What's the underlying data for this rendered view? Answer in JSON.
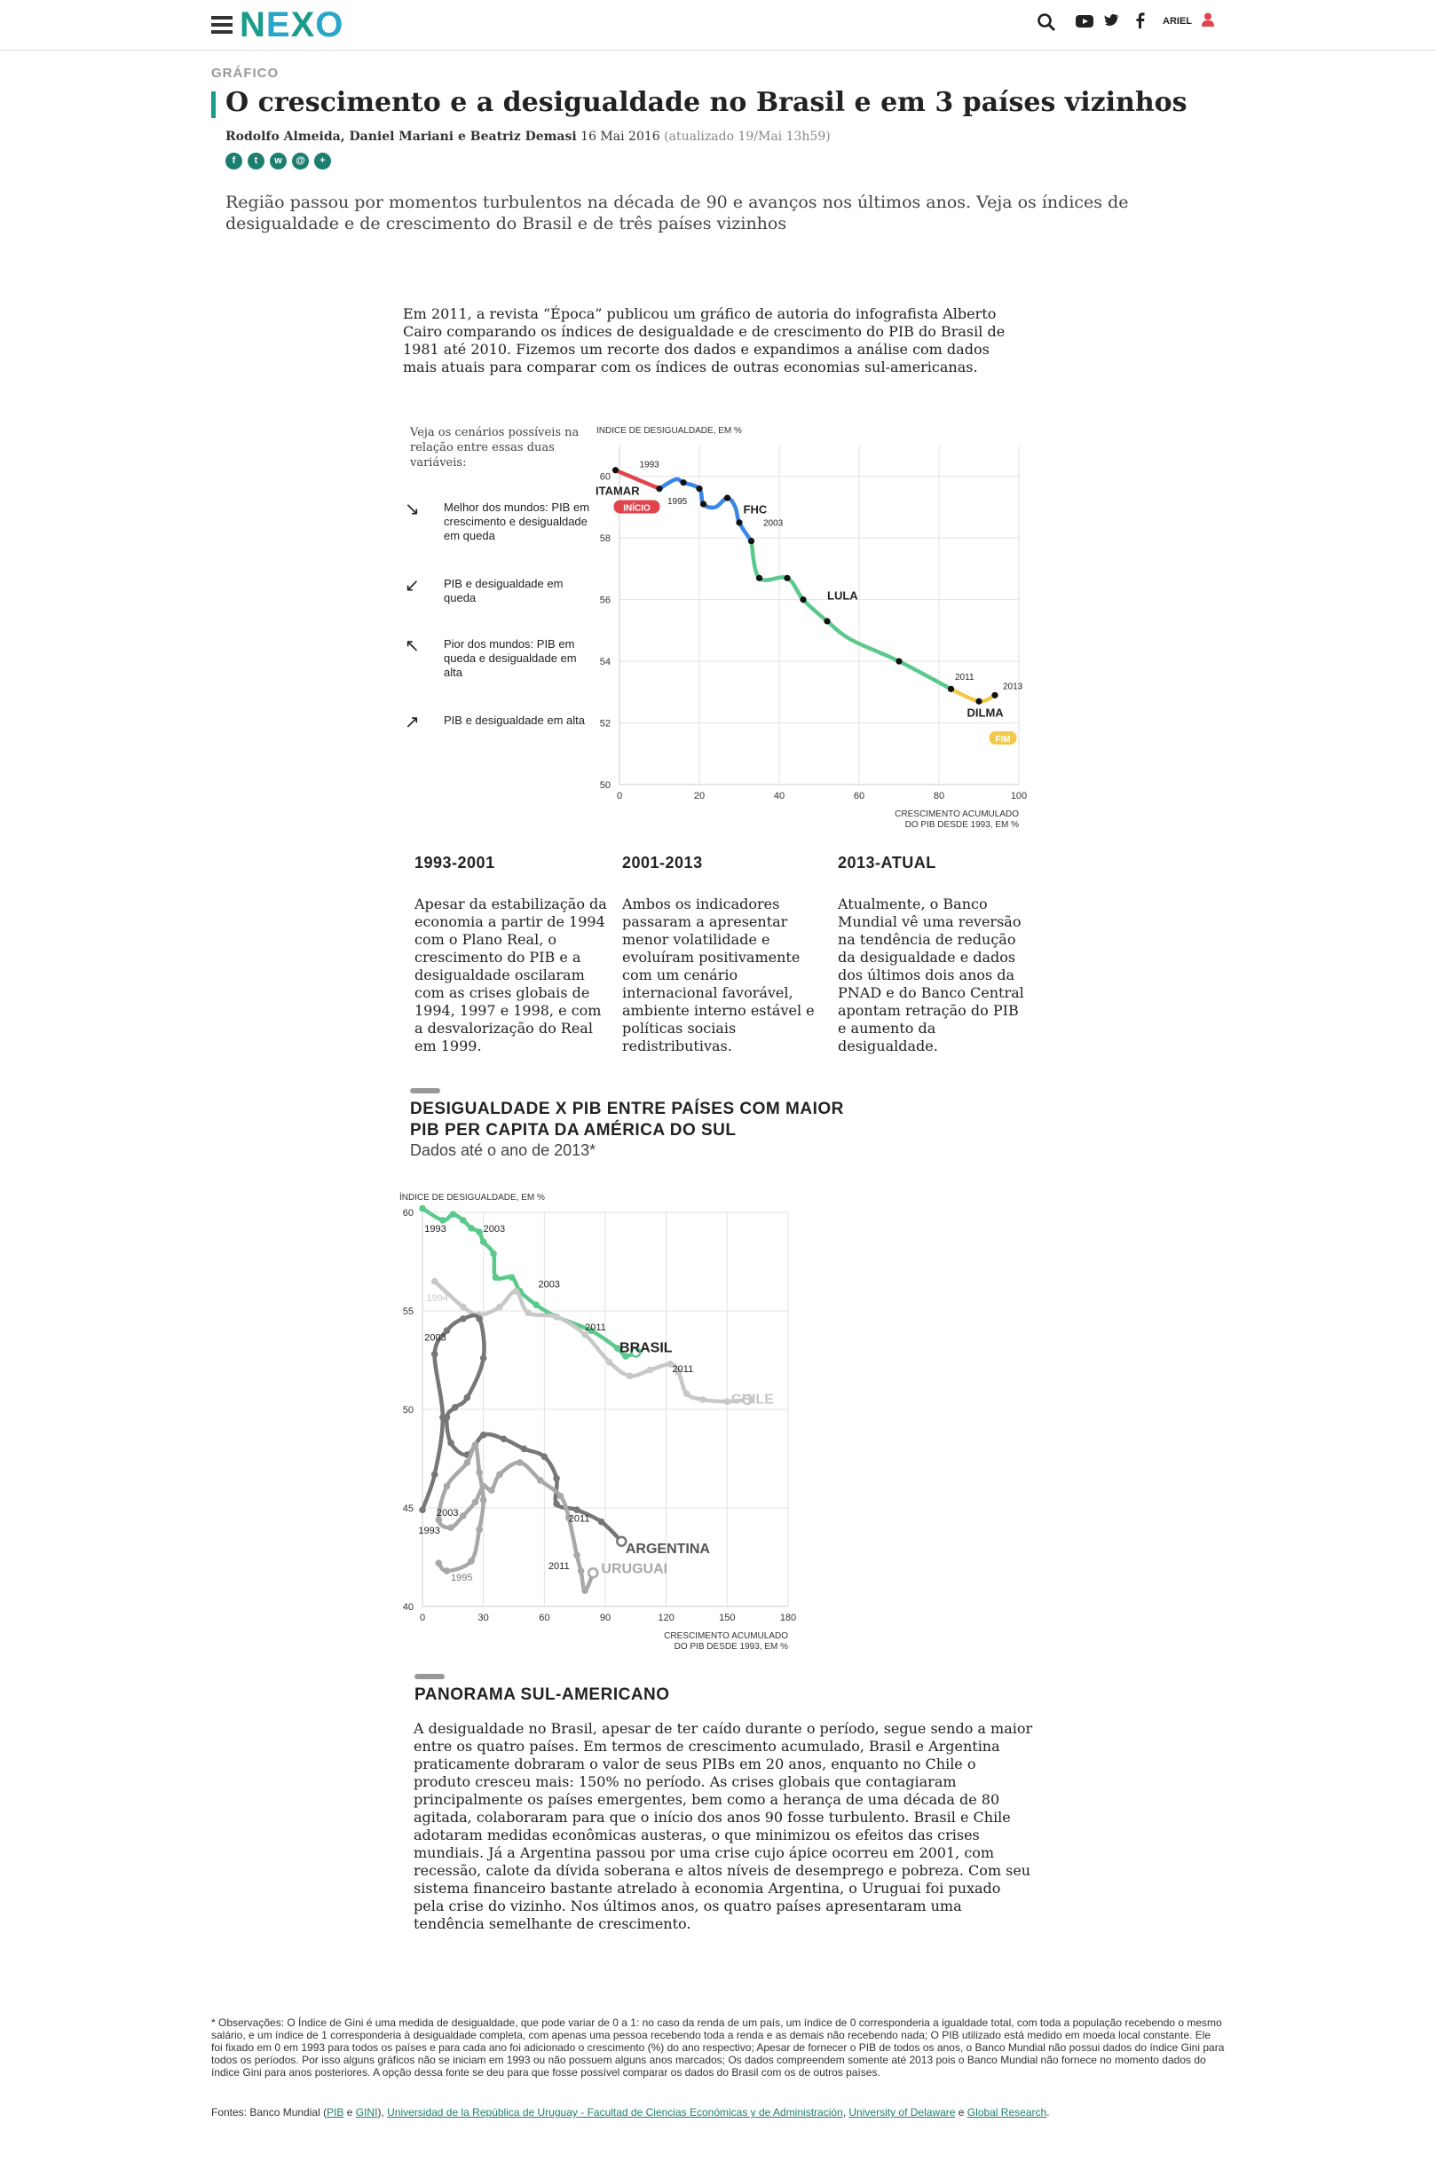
{
  "header": {
    "logo_letters": [
      "N",
      "E",
      "X",
      "O"
    ],
    "logo_colors": [
      "#1b9b8a",
      "#2aa6c9",
      "#1b9b8a",
      "#2aa6c9"
    ],
    "user": "ARIEL"
  },
  "article": {
    "category": "GRÁFICO",
    "title": "O crescimento e a desigualdade no Brasil e em 3 países vizinhos",
    "authors": "Rodolfo Almeida, Daniel Mariani e Beatriz Demasi",
    "date": "16 Mai 2016",
    "updated": "(atualizado 19/Mai 13h59)",
    "lead": "Região passou por momentos turbulentos na década de 90 e avanços nos últimos anos. Veja os índices de desigualdade e de crescimento do Brasil e de três países vizinhos",
    "intro": "Em 2011, a revista “Época” publicou um gráfico de autoria do infografista Alberto Cairo comparando os índices de desigualdade e de crescimento do PIB do Brasil de 1981 até 2010. Fizemos um recorte dos dados e expandimos a análise com dados mais atuais para comparar com os índices de outras economias sul-americanas."
  },
  "legend": {
    "intro": "Veja os cenários possíveis na relação entre essas duas variáveis:",
    "items": [
      {
        "arrow": "↘",
        "text": "Melhor dos mundos: PIB em crescimento e desigualdade em queda"
      },
      {
        "arrow": "↙",
        "text": "PIB e desigualdade em queda"
      },
      {
        "arrow": "↖",
        "text": "Pior dos mundos: PIB em queda e desigualdade em alta"
      },
      {
        "arrow": "↗",
        "text": "PIB e desigualdade em alta"
      }
    ]
  },
  "periods": [
    {
      "title": "1993-2001",
      "text": "Apesar da estabilização da economia a partir de 1994 com o Plano Real, o crescimento do PIB e a desigualdade oscilaram com as crises globais de 1994, 1997 e 1998, e com a desvalorização do Real em 1999."
    },
    {
      "title": "2001-2013",
      "text": "Ambos os indicadores passaram a apresentar menor volatilidade e evoluíram positivamente com um cenário internacional favorável, ambiente interno estável e políticas sociais redistributivas."
    },
    {
      "title": "2013-ATUAL",
      "text": "Atualmente, o Banco Mundial vê uma reversão na tendência de redução da desigualdade e dados dos últimos dois anos da PNAD e do Banco Central apontam retração do PIB e aumento da desigualdade."
    }
  ],
  "section2": {
    "title": "DESIGUALDADE X PIB ENTRE PAÍSES COM MAIOR PIB PER CAPITA DA AMÉRICA DO SUL",
    "subtitle": "Dados até o ano de 2013*"
  },
  "panorama": {
    "title": "PANORAMA SUL-AMERICANO",
    "text": "A desigualdade no Brasil, apesar de ter caído durante o período, segue sendo a maior entre os quatro países. Em termos de crescimento acumulado, Brasil e Argentina praticamente dobraram o valor de seus PIBs em 20 anos, enquanto no Chile o produto cresceu mais: 150% no período. As crises globais que contagiaram principalmente os países emergentes, bem como a herança de uma década de 80 agitada, colaboraram para que o início dos anos 90 fosse turbulento. Brasil e Chile adotaram medidas econômicas austeras, o que minimizou os efeitos das crises mundiais. Já a Argentina passou por uma crise cujo ápice ocorreu em 2001, com recessão, calote da dívida soberana e altos níveis de desemprego e pobreza. Com seu sistema financeiro bastante atrelado à economia Argentina, o Uruguai foi puxado pela crise do vizinho. Nos últimos anos, os quatro países apresentaram uma tendência semelhante de crescimento."
  },
  "notes": "* Observações: O Índice de Gini é uma medida de desigualdade, que pode variar de 0 a 1: no caso da renda de um país, um índice de 0 corresponderia a igualdade total, com toda a população recebendo o mesmo salário, e um índice de 1 corresponderia à desigualdade completa, com apenas uma pessoa recebendo toda a renda e as demais não recebendo nada; O PIB utilizado está medido em moeda local constante. Ele foi fixado em 0 em 1993 para todos os países e para cada ano foi adicionado o crescimento (%) do ano respectivo; Apesar de fornecer o PIB de todos os anos, o Banco Mundial não possui dados do índice Gini para todos os períodos. Por isso alguns gráficos não se iniciam em 1993 ou não possuem alguns anos marcados; Os dados compreendem somente até 2013 pois o Banco Mundial não fornece no momento dados do índice Gini para anos posteriores. A opção dessa fonte se deu para que fosse possível comparar os dados do Brasil com os de outros países.",
  "sources": {
    "prefix": "Fontes: Banco Mundial (",
    "pib": "PIB",
    "e1": " e ",
    "gini": "GINI",
    "mid": "), ",
    "uy": "Universidad de la República de Uruguay - Facultad de Ciencias Económicas y de Administración",
    "comma": ", ",
    "ud": "University of Delaware",
    "e2": " e ",
    "gr": "Global Research",
    "end": "."
  },
  "chart_data": [
    {
      "type": "scatter",
      "connected": true,
      "ylabel": "ÍNDICE DE DESIGUALDADE, EM %",
      "xlabel": "CRESCIMENTO ACUMULADO DO PIB DESDE 1993, EM %",
      "xlim": [
        0,
        100
      ],
      "ylim": [
        50,
        61
      ],
      "xticks": [
        0,
        20,
        40,
        60,
        80,
        100
      ],
      "yticks": [
        50,
        52,
        54,
        56,
        58,
        60
      ],
      "grid": true,
      "series": [
        {
          "name": "ITAMAR",
          "color": "#e0454e",
          "points": [
            [
              -1,
              60.2
            ],
            [
              10,
              59.6
            ]
          ]
        },
        {
          "name": "FHC",
          "color": "#3a86e8",
          "points": [
            [
              10,
              59.6
            ],
            [
              14,
              59.9
            ],
            [
              16,
              59.8
            ],
            [
              20,
              59.6
            ],
            [
              21,
              59.1
            ],
            [
              24,
              59.0
            ],
            [
              27,
              59.3
            ],
            [
              29,
              59.0
            ],
            [
              30,
              58.5
            ],
            [
              33,
              57.9
            ]
          ]
        },
        {
          "name": "LULA",
          "color": "#5cc98c",
          "points": [
            [
              33,
              57.9
            ],
            [
              35,
              56.7
            ],
            [
              42,
              56.7
            ],
            [
              46,
              56.0
            ],
            [
              52,
              55.3
            ],
            [
              58,
              54.7
            ],
            [
              70,
              54.0
            ],
            [
              83,
              53.1
            ]
          ]
        },
        {
          "name": "DILMA",
          "color": "#f2c94c",
          "points": [
            [
              83,
              53.1
            ],
            [
              90,
              52.7
            ],
            [
              94,
              52.9
            ]
          ]
        }
      ],
      "markers": [
        [
          -1,
          60.2
        ],
        [
          10,
          59.6
        ],
        [
          16,
          59.8
        ],
        [
          20,
          59.6
        ],
        [
          21,
          59.1
        ],
        [
          27,
          59.3
        ],
        [
          30,
          58.5
        ],
        [
          33,
          57.9
        ],
        [
          35,
          56.7
        ],
        [
          42,
          56.7
        ],
        [
          46,
          56.0
        ],
        [
          52,
          55.3
        ],
        [
          70,
          54.0
        ],
        [
          83,
          53.1
        ],
        [
          90,
          52.7
        ],
        [
          94,
          52.9
        ]
      ],
      "annotations": [
        {
          "text": "1993",
          "x": 5,
          "y": 60.3
        },
        {
          "text": "1995",
          "x": 12,
          "y": 59.1
        },
        {
          "text": "2003",
          "x": 36,
          "y": 58.4
        },
        {
          "text": "2011",
          "x": 84,
          "y": 53.4
        },
        {
          "text": "2013",
          "x": 96,
          "y": 53.1
        },
        {
          "text": "ITAMAR",
          "x": -6,
          "y": 59.4,
          "bold": true
        },
        {
          "text": "FHC",
          "x": 31,
          "y": 58.8,
          "bold": true
        },
        {
          "text": "LULA",
          "x": 52,
          "y": 56.0,
          "bold": true
        },
        {
          "text": "DILMA",
          "x": 87,
          "y": 52.2,
          "bold": true
        }
      ],
      "tags": [
        {
          "text": "INÍCIO",
          "x": -1,
          "y": 59.0,
          "color": "#e0454e"
        },
        {
          "text": "FIM",
          "x": 93,
          "y": 51.5,
          "color": "#f2c94c"
        }
      ]
    },
    {
      "type": "scatter",
      "connected": true,
      "ylabel": "ÍNDICE DE DESIGUALDADE, EM %",
      "xlabel": "CRESCIMENTO ACUMULADO DO PIB DESDE 1993, EM %",
      "xlim": [
        0,
        180
      ],
      "ylim": [
        40,
        60
      ],
      "xticks": [
        0,
        30,
        60,
        90,
        120,
        150,
        180
      ],
      "yticks": [
        40,
        45,
        50,
        55,
        60
      ],
      "grid": true,
      "series": [
        {
          "name": "BRASIL",
          "color": "#5cc98c",
          "points": [
            [
              0,
              60.2
            ],
            [
              10,
              59.6
            ],
            [
              15,
              59.9
            ],
            [
              20,
              59.6
            ],
            [
              24,
              59.2
            ],
            [
              28,
              59.0
            ],
            [
              30,
              58.5
            ],
            [
              35,
              57.9
            ],
            [
              36,
              56.7
            ],
            [
              44,
              56.7
            ],
            [
              48,
              56.0
            ],
            [
              56,
              55.3
            ],
            [
              66,
              54.7
            ],
            [
              83,
              54.0
            ],
            [
              96,
              53.1
            ],
            [
              100,
              52.7
            ],
            [
              105,
              52.9
            ]
          ]
        },
        {
          "name": "CHILE",
          "color": "#c8c8c8",
          "points": [
            [
              6,
              56.5
            ],
            [
              20,
              55.2
            ],
            [
              28,
              54.8
            ],
            [
              38,
              55.2
            ],
            [
              46,
              56.0
            ],
            [
              52,
              54.9
            ],
            [
              66,
              54.7
            ],
            [
              80,
              53.8
            ],
            [
              92,
              52.4
            ],
            [
              102,
              51.7
            ],
            [
              112,
              52.0
            ],
            [
              122,
              52.3
            ],
            [
              126,
              51.9
            ],
            [
              130,
              50.8
            ],
            [
              138,
              50.5
            ],
            [
              150,
              50.4
            ],
            [
              160,
              50.5
            ]
          ]
        },
        {
          "name": "ARGENTINA",
          "color": "#777777",
          "points": [
            [
              0,
              44.9
            ],
            [
              6,
              46.7
            ],
            [
              10,
              49.6
            ],
            [
              6,
              52.8
            ],
            [
              12,
              54.0
            ],
            [
              20,
              54.6
            ],
            [
              28,
              54.6
            ],
            [
              30,
              52.6
            ],
            [
              22,
              50.6
            ],
            [
              16,
              50.1
            ],
            [
              12,
              49.6
            ],
            [
              14,
              48.3
            ],
            [
              22,
              47.7
            ],
            [
              30,
              48.7
            ],
            [
              40,
              48.5
            ],
            [
              50,
              48.0
            ],
            [
              60,
              47.6
            ],
            [
              66,
              46.5
            ],
            [
              66,
              45.2
            ],
            [
              76,
              44.9
            ],
            [
              88,
              44.3
            ],
            [
              98,
              43.3
            ]
          ]
        },
        {
          "name": "URUGUAI",
          "color": "#a8a8a8",
          "points": [
            [
              8,
              42.2
            ],
            [
              12,
              41.8
            ],
            [
              24,
              42.3
            ],
            [
              28,
              43.9
            ],
            [
              30,
              45.4
            ],
            [
              28,
              46.8
            ],
            [
              26,
              48.2
            ],
            [
              22,
              47.3
            ],
            [
              12,
              46.1
            ],
            [
              8,
              44.4
            ],
            [
              14,
              44.0
            ],
            [
              20,
              44.6
            ],
            [
              26,
              45.3
            ],
            [
              30,
              46.1
            ],
            [
              34,
              45.9
            ],
            [
              38,
              46.7
            ],
            [
              48,
              47.3
            ],
            [
              58,
              46.4
            ],
            [
              68,
              45.6
            ],
            [
              72,
              44.5
            ],
            [
              76,
              42.6
            ],
            [
              78,
              41.8
            ],
            [
              80,
              40.8
            ],
            [
              84,
              41.7
            ]
          ]
        }
      ],
      "annotations": [
        {
          "text": "1993",
          "x": 1,
          "y": 59.0
        },
        {
          "text": "2003",
          "x": 30,
          "y": 59.0
        },
        {
          "text": "2003",
          "x": 57,
          "y": 56.2
        },
        {
          "text": "2011",
          "x": 80,
          "y": 54.0
        },
        {
          "text": "1994",
          "x": 2,
          "y": 55.5
        },
        {
          "text": "2011",
          "x": 123,
          "y": 51.9
        },
        {
          "text": "2003",
          "x": 1,
          "y": 53.5
        },
        {
          "text": "1993",
          "x": -2,
          "y": 43.7
        },
        {
          "text": "2003",
          "x": 7,
          "y": 44.6
        },
        {
          "text": "2011",
          "x": 72,
          "y": 44.3
        },
        {
          "text": "2011",
          "x": 62,
          "y": 41.9
        },
        {
          "text": "1995",
          "x": 14,
          "y": 41.3
        },
        {
          "text": "BRASIL",
          "x": 97,
          "y": 52.9,
          "bold": true
        },
        {
          "text": "CHILE",
          "x": 152,
          "y": 50.3,
          "bold": true
        },
        {
          "text": "ARGENTINA",
          "x": 100,
          "y": 42.7,
          "bold": true
        },
        {
          "text": "URUGUAI",
          "x": 88,
          "y": 41.7,
          "bold": true
        }
      ]
    }
  ]
}
